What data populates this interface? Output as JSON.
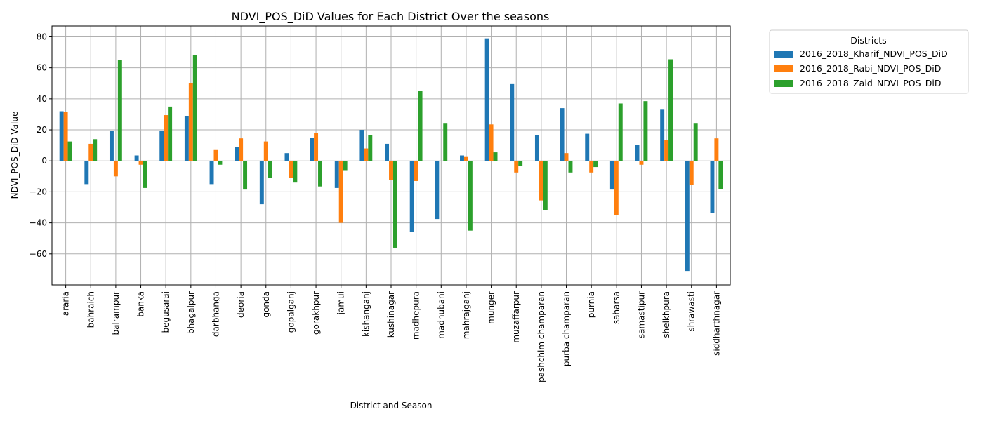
{
  "chart_data": {
    "type": "bar",
    "title": "NDVI_POS_DiD Values for Each District Over the seasons",
    "xlabel": "District and Season",
    "ylabel": "NDVI_POS_DiD Value",
    "ylim": [
      -80,
      87
    ],
    "yticks": [
      -60,
      -40,
      -20,
      0,
      20,
      40,
      60,
      80
    ],
    "grid": true,
    "legend": {
      "title": "Districts",
      "placement": "outside-top-right"
    },
    "categories": [
      "araria",
      "bahraich",
      "balrampur",
      "banka",
      "begusarai",
      "bhagalpur",
      "darbhanga",
      "deoria",
      "gonda",
      "gopalganj",
      "gorakhpur",
      "jamui",
      "kishanganj",
      "kushinagar",
      "madhepura",
      "madhubani",
      "mahrajganj",
      "munger",
      "muzaffarpur",
      "pashchim champaran",
      "purba champaran",
      "purnia",
      "saharsa",
      "samastipur",
      "sheikhpura",
      "shrawasti",
      "siddharthnagar"
    ],
    "series": [
      {
        "name": "2016_2018_Kharif_NDVI_POS_DiD",
        "color": "#1f77b4",
        "values": [
          32,
          -15,
          19.5,
          3.5,
          19.5,
          29,
          -15,
          9,
          -28,
          5,
          15,
          -17.5,
          20,
          11,
          -46,
          -37.5,
          3.5,
          79,
          49.5,
          16.5,
          34,
          17.5,
          -18.5,
          10.5,
          33,
          -71,
          -33.5
        ]
      },
      {
        "name": "2016_2018_Rabi_NDVI_POS_DiD",
        "color": "#ff7f0e",
        "values": [
          31.5,
          11,
          -10,
          -2.5,
          29.5,
          50,
          7,
          14.5,
          12.5,
          -11,
          18,
          -40,
          8,
          -12.5,
          -13,
          0,
          2.5,
          23.5,
          -7.5,
          -25.5,
          5,
          -7.5,
          -35,
          -2.5,
          13.5,
          -15.5,
          14.5
        ]
      },
      {
        "name": "2016_2018_Zaid_NDVI_POS_DiD",
        "color": "#2ca02c",
        "values": [
          12.5,
          14,
          65,
          -17.5,
          35,
          68,
          -2.5,
          -18.5,
          -11,
          -14,
          -16.5,
          -6,
          16.5,
          -56,
          45,
          24,
          -45,
          5.5,
          -3.5,
          -32,
          -7.5,
          -4,
          37,
          38.5,
          65.5,
          24,
          -18
        ]
      }
    ]
  }
}
